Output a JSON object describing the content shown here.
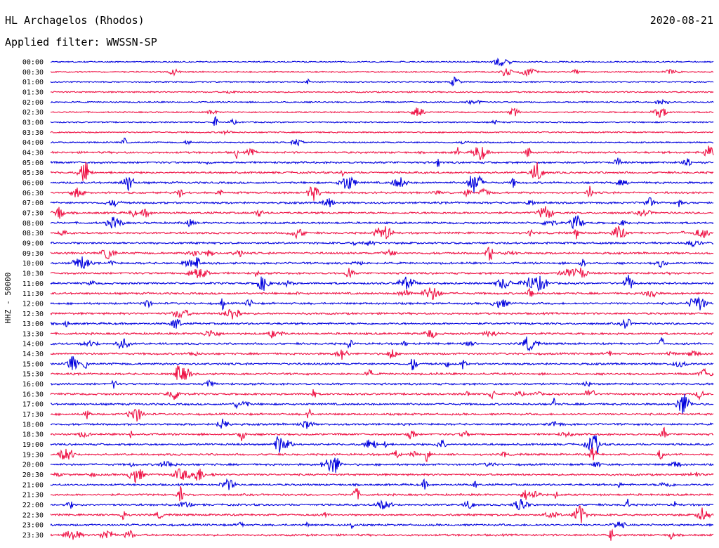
{
  "header": {
    "station": "HL Archagelos (Rhodos)",
    "date": "2020-08-21",
    "filter": "Applied filter: WWSSN-SP"
  },
  "chart_data": {
    "type": "line",
    "title": "HL Archagelos (Rhodos)",
    "ylabel": "HHZ - 50000",
    "xlabel": "",
    "row_labels": [
      "00:00",
      "00:30",
      "01:00",
      "01:30",
      "02:00",
      "02:30",
      "03:00",
      "03:30",
      "04:00",
      "04:30",
      "05:00",
      "05:30",
      "06:00",
      "06:30",
      "07:00",
      "07:30",
      "08:00",
      "08:30",
      "09:00",
      "09:30",
      "10:00",
      "10:30",
      "11:00",
      "11:30",
      "12:00",
      "12:30",
      "13:00",
      "13:30",
      "14:00",
      "14:30",
      "15:00",
      "15:30",
      "16:00",
      "16:30",
      "17:00",
      "17:30",
      "18:00",
      "18:30",
      "19:00",
      "19:30",
      "20:00",
      "20:30",
      "21:00",
      "21:30",
      "22:00",
      "22:30",
      "23:00",
      "23:30"
    ],
    "series_colors": [
      "#0000dd",
      "#ee1144"
    ],
    "grid": false
  }
}
